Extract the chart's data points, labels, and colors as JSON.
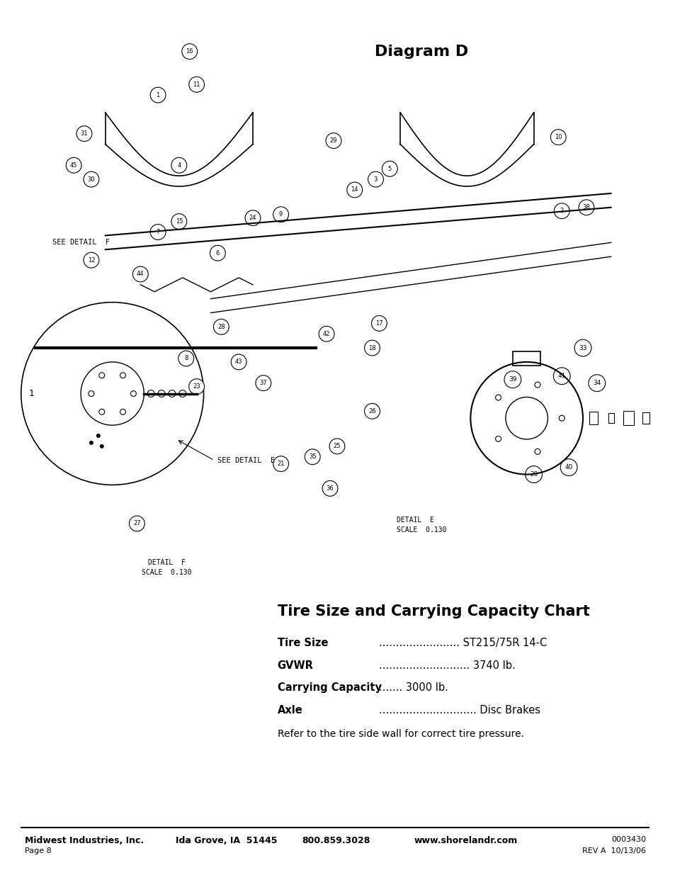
{
  "title": "Diagram D",
  "chart_title": "Tire Size and Carrying Capacity Chart",
  "chart_rows": [
    {
      "label": "Tire Size",
      "dots": "........................",
      "value": "ST215/75R 14-C"
    },
    {
      "label": "GVWR",
      "dots": "...........................",
      "value": "3740 lb."
    },
    {
      "label": "Carrying Capacity",
      "dots": ".......",
      "value": "3000 lb."
    },
    {
      "label": "Axle",
      "dots": ".............................",
      "value": "Disc Brakes"
    }
  ],
  "note": "Refer to the tire side wall for correct tire pressure.",
  "footer_left1": "Midwest Industries, Inc.",
  "footer_left2": "Page 8",
  "footer_center1": "Ida Grove, IA  51445",
  "footer_center2": "800.859.3028",
  "footer_center3": "www.shorelandr.com",
  "footer_right1": "0003430",
  "footer_right2": "REV A  10/13/06",
  "detail_e_text": "DETAIL  E\nSCALE  0.130",
  "detail_f_text": "DETAIL  F\nSCALE  0.130",
  "see_detail_f": "SEE DETAIL  F",
  "see_detail_e": "SEE DETAIL  E",
  "bg_color": "#ffffff",
  "text_color": "#000000",
  "diagram_image": null
}
